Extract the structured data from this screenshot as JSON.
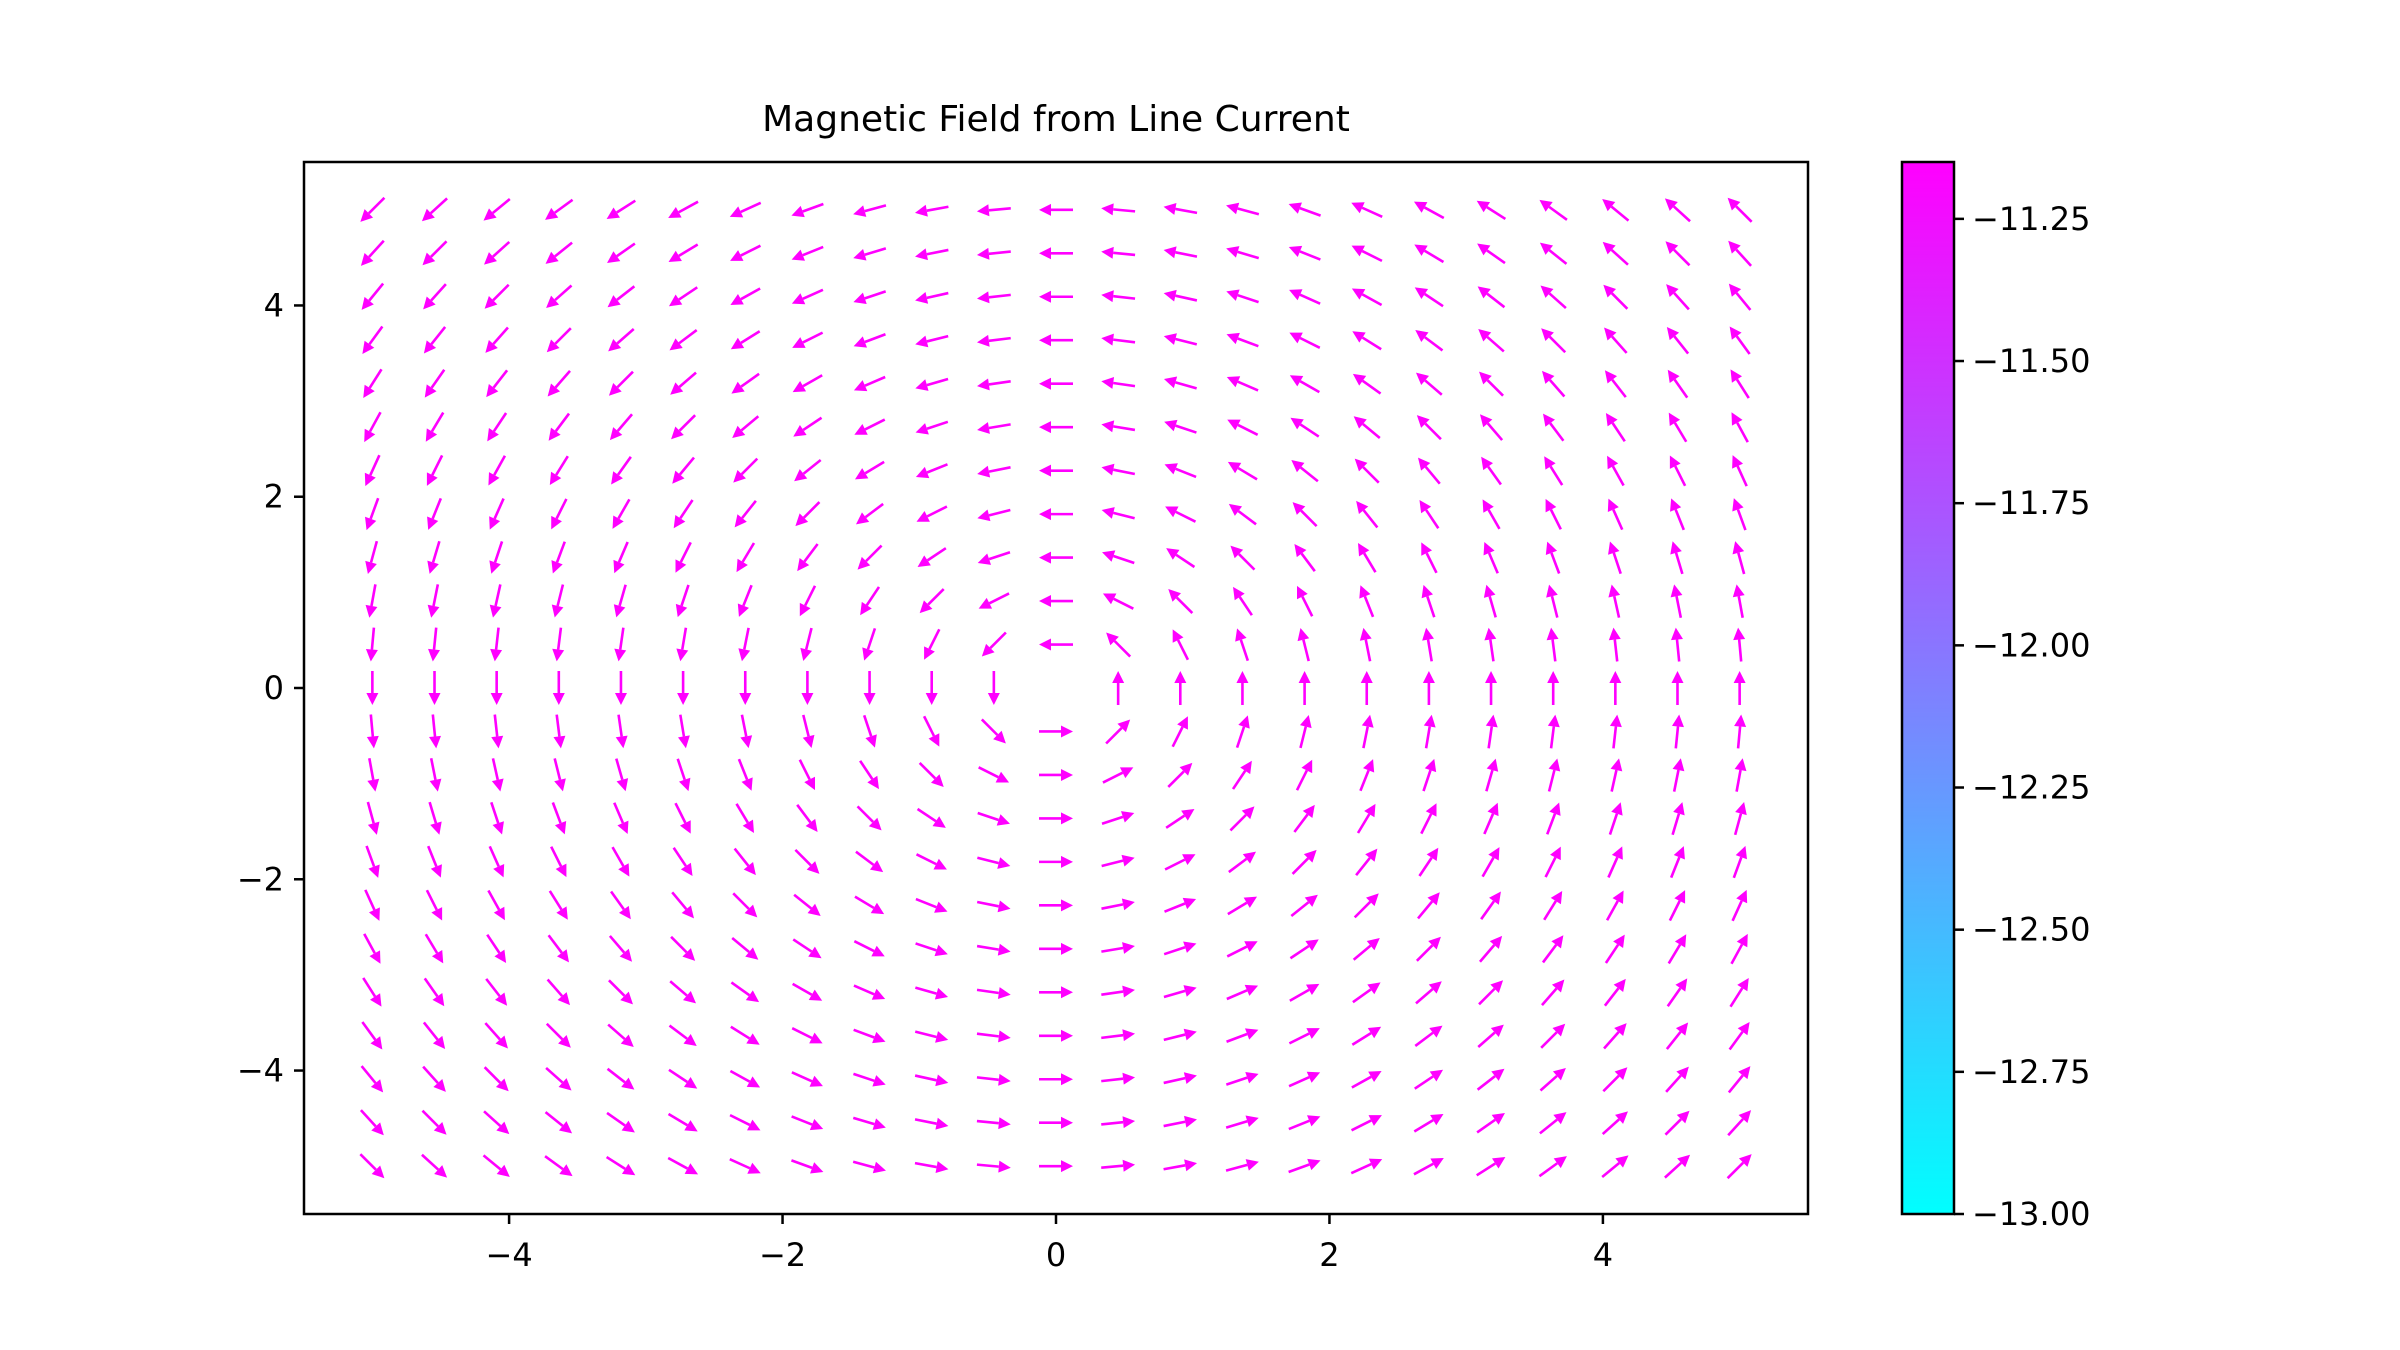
{
  "chart_data": {
    "type": "quiver",
    "title": "Magnetic Field from Line Current",
    "xlabel": "",
    "ylabel": "",
    "xlim": [
      -5.5,
      5.5
    ],
    "ylim": [
      -5.5,
      5.5
    ],
    "xticks": [
      -4,
      -2,
      0,
      2,
      4
    ],
    "xtick_labels": [
      "−4",
      "−2",
      "0",
      "2",
      "4"
    ],
    "yticks": [
      4,
      2,
      0,
      -2,
      -4
    ],
    "ytick_labels": [
      "4",
      "2",
      "0",
      "−2",
      "−4"
    ],
    "grid": false,
    "field": {
      "description_source": "vector field circulating counter-clockwise around a line current at origin",
      "grid_x": {
        "start": -5,
        "stop": 5,
        "count": 23
      },
      "grid_y": {
        "start": -5,
        "stop": 5,
        "count": 23
      },
      "current_position": [
        0,
        0
      ],
      "arrow_direction": "counter-clockwise"
    },
    "colorbar": {
      "colormap": "cool",
      "min": -13.0,
      "max": -11.15,
      "ticks": [
        -11.25,
        -11.5,
        -11.75,
        -12.0,
        -12.25,
        -12.5,
        -12.75,
        -13.0
      ],
      "tick_labels": [
        "−11.25",
        "−11.50",
        "−11.75",
        "−12.00",
        "−12.25",
        "−12.50",
        "−12.75",
        "−13.00"
      ]
    }
  }
}
